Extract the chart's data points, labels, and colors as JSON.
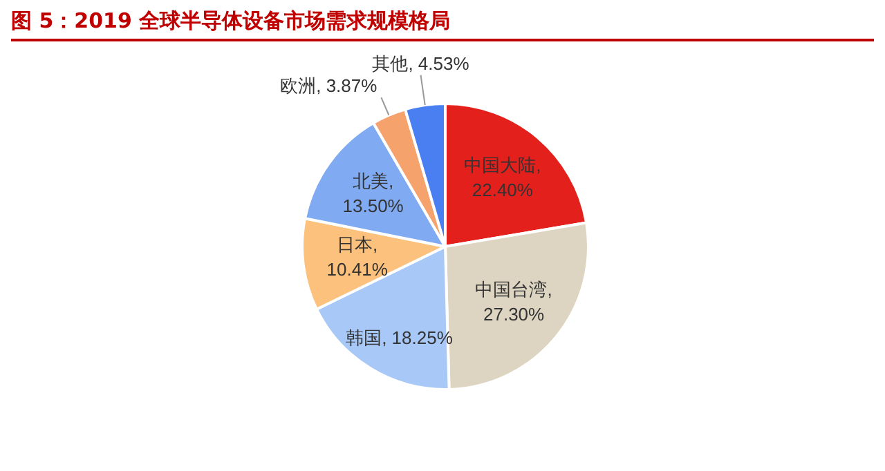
{
  "chart_data": {
    "type": "pie",
    "title": "图 5：2019 全球半导体设备市场需求规模格局",
    "categories": [
      "中国大陆",
      "中国台湾",
      "韩国",
      "日本",
      "北美",
      "欧洲",
      "其他"
    ],
    "values": [
      22.4,
      27.3,
      18.25,
      10.41,
      13.5,
      3.87,
      4.53
    ],
    "value_labels": [
      ", 22.40%",
      ", 27.30%",
      ", 18.25%",
      ", 10.41%",
      ", 13.50%",
      ", 3.87%",
      ", 4.53%"
    ],
    "colors": [
      "#e3201b",
      "#ddd5c1",
      "#a8c8f7",
      "#fcc17c",
      "#80abf2",
      "#f6a26c",
      "#4a7ff2"
    ],
    "legend": false
  }
}
